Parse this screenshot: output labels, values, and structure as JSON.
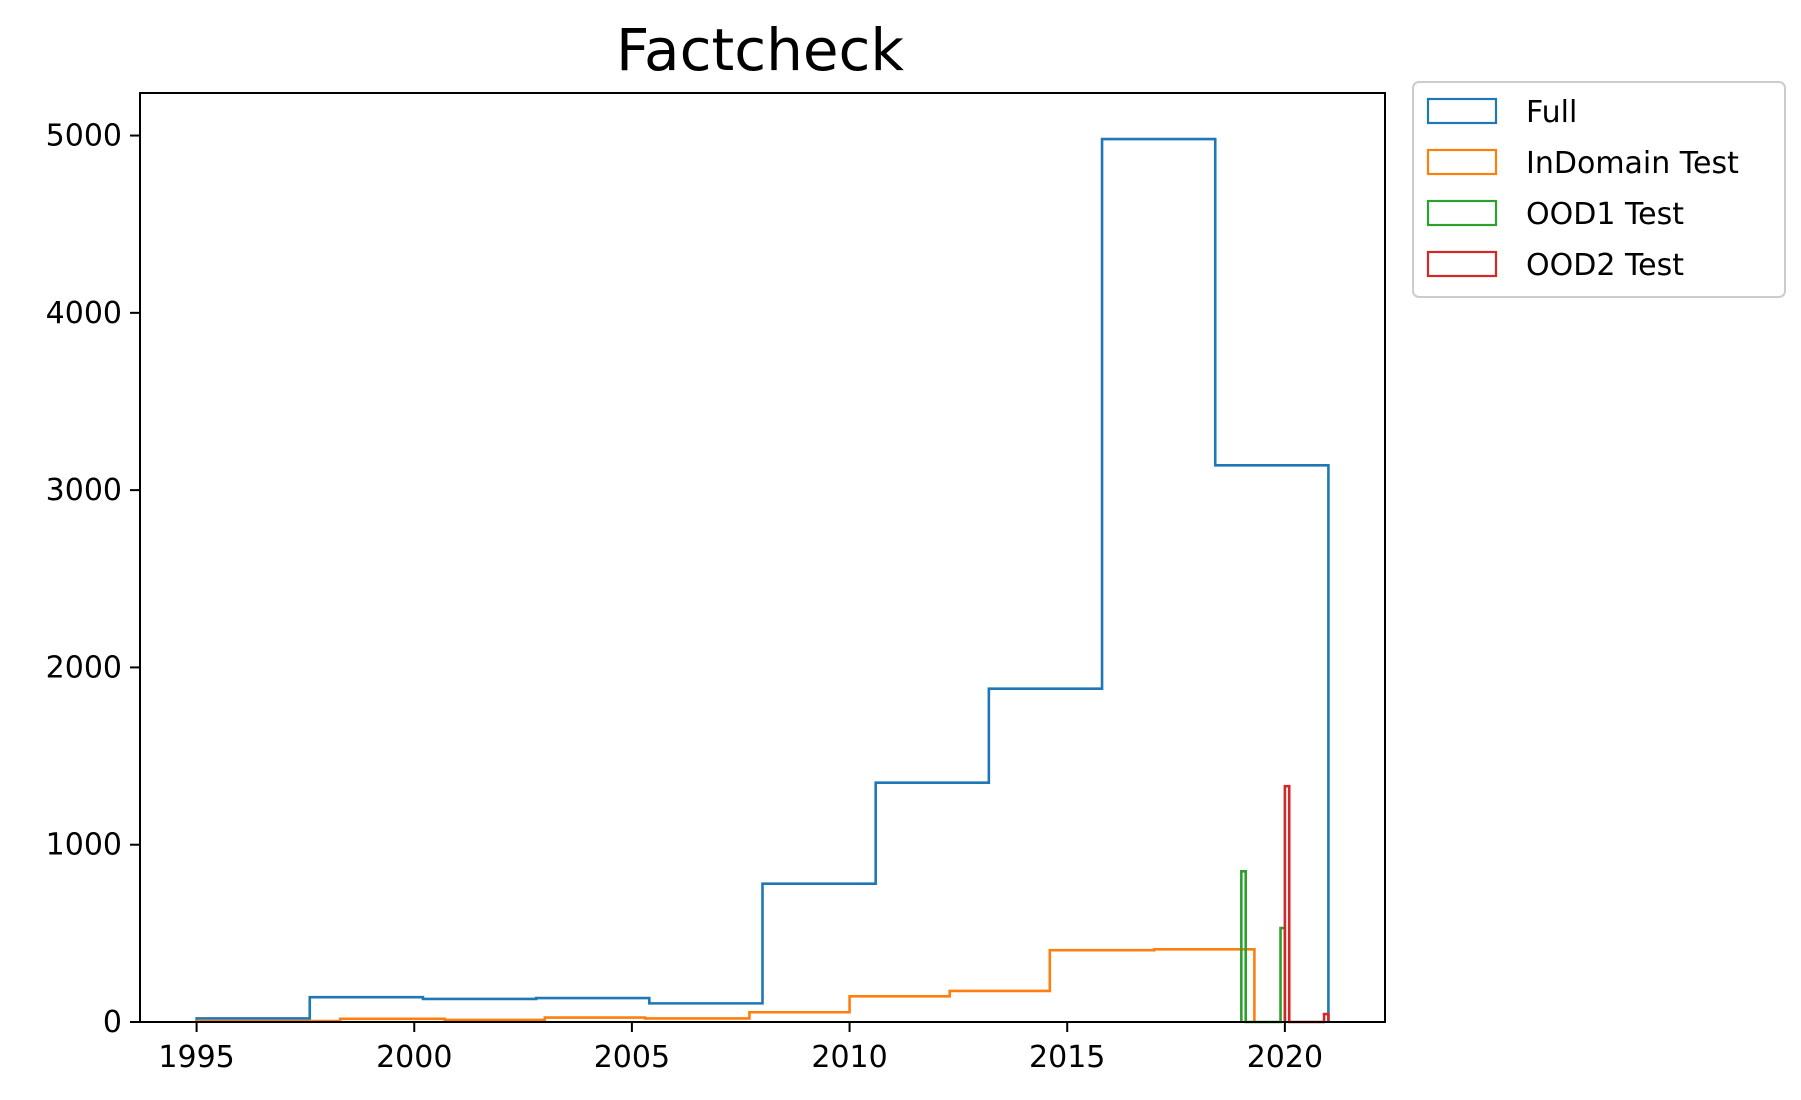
{
  "chart_data": {
    "type": "histogram",
    "title": "Factcheck",
    "xlabel": "",
    "ylabel": "",
    "xlim": [
      1993.7,
      2022.3
    ],
    "ylim": [
      0,
      5240
    ],
    "x_ticks": [
      1995,
      2000,
      2005,
      2010,
      2015,
      2020
    ],
    "y_ticks": [
      0,
      1000,
      2000,
      3000,
      4000,
      5000
    ],
    "grid": false,
    "legend_placement": "outside-top-right",
    "series": [
      {
        "name": "Full",
        "color": "#1f77b4",
        "edges": [
          1995.0,
          1997.6,
          2000.2,
          2002.8,
          2005.4,
          2008.0,
          2010.6,
          2013.2,
          2015.8,
          2018.4,
          2021.0
        ],
        "values": [
          20,
          140,
          130,
          135,
          105,
          780,
          1350,
          1880,
          4980,
          3140
        ]
      },
      {
        "name": "InDomain Test",
        "color": "#ff7f0e",
        "edges": [
          1995.0,
          1998.3,
          2000.7,
          2003.0,
          2005.3,
          2007.7,
          2010.0,
          2012.3,
          2014.6,
          2017.0,
          2019.3
        ],
        "values": [
          5,
          18,
          12,
          25,
          20,
          55,
          145,
          175,
          405,
          410
        ]
      },
      {
        "name": "OOD1 Test",
        "color": "#2ca02c",
        "edges": [
          2019.0,
          2019.1,
          2019.2,
          2019.3,
          2019.4,
          2019.5,
          2019.6,
          2019.7,
          2019.8,
          2019.9,
          2020.0
        ],
        "values": [
          850,
          0,
          0,
          0,
          0,
          0,
          0,
          0,
          0,
          530
        ]
      },
      {
        "name": "OOD2 Test",
        "color": "#d62728",
        "edges": [
          2020.0,
          2020.1,
          2020.2,
          2020.3,
          2020.4,
          2020.5,
          2020.6,
          2020.7,
          2020.8,
          2020.9,
          2021.0
        ],
        "values": [
          1330,
          0,
          0,
          0,
          0,
          0,
          0,
          0,
          0,
          45
        ]
      }
    ]
  }
}
